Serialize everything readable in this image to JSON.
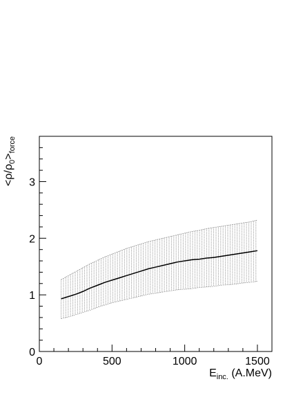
{
  "chart_data": {
    "type": "area",
    "title": "",
    "xlabel_main": "E",
    "xlabel_sub": "inc.",
    "xlabel_unit": " (A.MeV)",
    "ylabel_main": "<ρ/ρ",
    "ylabel_sub0": "0",
    "ylabel_close": ">",
    "ylabel_sub": "force",
    "xlim": [
      0,
      1600
    ],
    "ylim": [
      0,
      3.8
    ],
    "xticks": [
      0,
      500,
      1000,
      1500
    ],
    "yticks": [
      0,
      1,
      2,
      3
    ],
    "x_minor_step": 100,
    "y_minor_step": 0.2,
    "grid": false,
    "colors": {
      "line": "#000000",
      "band": "#9a9a9a",
      "axis": "#000000"
    },
    "series": [
      {
        "x": [
          150,
          200,
          250,
          300,
          350,
          400,
          450,
          500,
          550,
          600,
          650,
          700,
          750,
          800,
          850,
          900,
          950,
          1000,
          1050,
          1100,
          1150,
          1200,
          1250,
          1300,
          1350,
          1400,
          1450,
          1500
        ],
        "y": [
          0.93,
          0.97,
          1.01,
          1.06,
          1.12,
          1.17,
          1.22,
          1.26,
          1.3,
          1.34,
          1.38,
          1.42,
          1.46,
          1.49,
          1.52,
          1.55,
          1.58,
          1.6,
          1.62,
          1.63,
          1.65,
          1.66,
          1.68,
          1.7,
          1.72,
          1.74,
          1.76,
          1.78
        ],
        "upper": [
          1.27,
          1.34,
          1.41,
          1.48,
          1.55,
          1.61,
          1.67,
          1.72,
          1.77,
          1.82,
          1.86,
          1.9,
          1.94,
          1.97,
          2.0,
          2.03,
          2.06,
          2.09,
          2.12,
          2.14,
          2.17,
          2.19,
          2.21,
          2.23,
          2.25,
          2.27,
          2.29,
          2.32
        ],
        "lower": [
          0.58,
          0.61,
          0.65,
          0.69,
          0.73,
          0.78,
          0.82,
          0.86,
          0.89,
          0.92,
          0.95,
          0.98,
          1.01,
          1.03,
          1.05,
          1.07,
          1.09,
          1.1,
          1.11,
          1.13,
          1.14,
          1.15,
          1.17,
          1.18,
          1.19,
          1.21,
          1.22,
          1.24
        ]
      }
    ]
  }
}
